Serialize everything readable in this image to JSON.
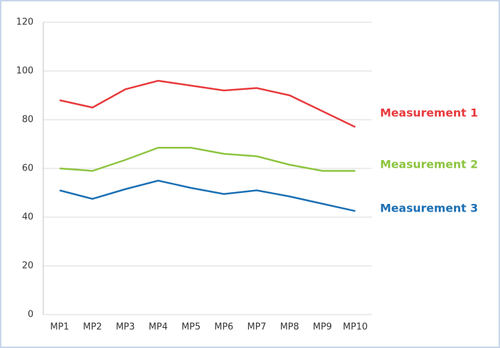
{
  "chart_data": {
    "type": "line",
    "categories": [
      "MP1",
      "MP2",
      "MP3",
      "MP4",
      "MP5",
      "MP6",
      "MP7",
      "MP8",
      "MP9",
      "MP10"
    ],
    "series": [
      {
        "name": "Measurement 1",
        "color": "#e8393b",
        "values": [
          88,
          85,
          92.5,
          96,
          94,
          92,
          93,
          90,
          83.5,
          77
        ]
      },
      {
        "name": "Measurement 2",
        "color": "#8cc43f",
        "values": [
          60,
          59,
          63.5,
          68.5,
          68.5,
          66,
          65,
          61.5,
          59,
          59
        ]
      },
      {
        "name": "Measurement 3",
        "color": "#1a6fb4",
        "values": [
          51,
          47.5,
          51.5,
          55,
          52,
          49.5,
          51,
          48.5,
          45.5,
          42.5
        ]
      }
    ],
    "ylim": [
      0,
      120
    ],
    "yticks": [
      0,
      20,
      40,
      60,
      80,
      100,
      120
    ],
    "grid": true
  }
}
